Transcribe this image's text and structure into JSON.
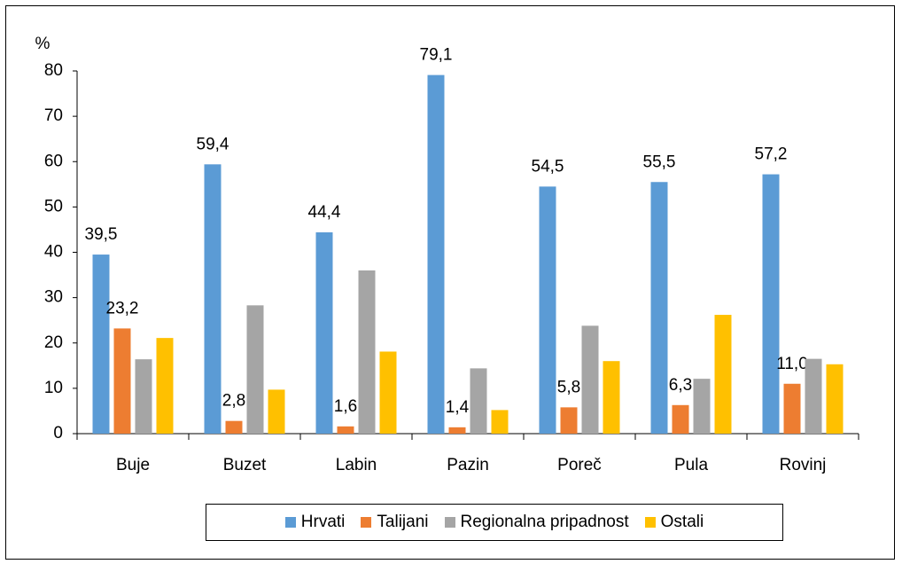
{
  "chart_data": {
    "type": "bar",
    "y_label": "%",
    "categories": [
      "Buje",
      "Buzet",
      "Labin",
      "Pazin",
      "Poreč",
      "Pula",
      "Rovinj"
    ],
    "series": [
      {
        "name": "Hrvati",
        "color": "#5b9bd5",
        "values": [
          39.5,
          59.4,
          44.4,
          79.1,
          54.5,
          55.5,
          57.2
        ],
        "value_labels": [
          "39,5",
          "59,4",
          "44,4",
          "79,1",
          "54,5",
          "55,5",
          "57,2"
        ]
      },
      {
        "name": "Talijani",
        "color": "#ed7d31",
        "values": [
          23.2,
          2.8,
          1.6,
          1.4,
          5.8,
          6.3,
          11.0
        ],
        "value_labels": [
          "23,2",
          "2,8",
          "1,6",
          "1,4",
          "5,8",
          "6,3",
          "11,0"
        ]
      },
      {
        "name": "Regionalna pripadnost",
        "color": "#a5a5a5",
        "values": [
          16.4,
          28.3,
          36.0,
          14.4,
          23.8,
          12.1,
          16.5
        ]
      },
      {
        "name": "Ostali",
        "color": "#ffc000",
        "values": [
          21.1,
          9.7,
          18.1,
          5.2,
          16.0,
          26.2,
          15.3
        ]
      }
    ],
    "ylim": [
      0,
      80
    ],
    "yticks": [
      0,
      10,
      20,
      30,
      40,
      50,
      60,
      70,
      80
    ],
    "legend": "bottom"
  }
}
